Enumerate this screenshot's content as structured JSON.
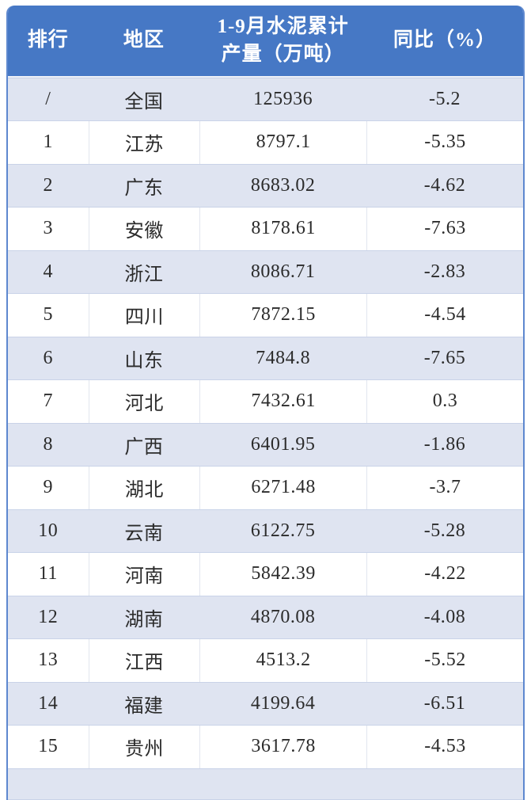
{
  "table": {
    "headers": {
      "rank": "排行",
      "region": "地区",
      "production_line1": "1-9月水泥累计",
      "production_line2": "产量（万吨）",
      "yoy": "同比（%）"
    },
    "colors": {
      "header_bg": "#4678c5",
      "row_alt_bg": "#dfe4f1",
      "side_border": "#5e88cf",
      "text": "#2b2b2b"
    },
    "rows": [
      {
        "rank": "/",
        "region": "全国",
        "production": "125936",
        "yoy": "-5.2"
      },
      {
        "rank": "1",
        "region": "江苏",
        "production": "8797.1",
        "yoy": "-5.35"
      },
      {
        "rank": "2",
        "region": "广东",
        "production": "8683.02",
        "yoy": "-4.62"
      },
      {
        "rank": "3",
        "region": "安徽",
        "production": "8178.61",
        "yoy": "-7.63"
      },
      {
        "rank": "4",
        "region": "浙江",
        "production": "8086.71",
        "yoy": "-2.83"
      },
      {
        "rank": "5",
        "region": "四川",
        "production": "7872.15",
        "yoy": "-4.54"
      },
      {
        "rank": "6",
        "region": "山东",
        "production": "7484.8",
        "yoy": "-7.65"
      },
      {
        "rank": "7",
        "region": "河北",
        "production": "7432.61",
        "yoy": "0.3"
      },
      {
        "rank": "8",
        "region": "广西",
        "production": "6401.95",
        "yoy": "-1.86"
      },
      {
        "rank": "9",
        "region": "湖北",
        "production": "6271.48",
        "yoy": "-3.7"
      },
      {
        "rank": "10",
        "region": "云南",
        "production": "6122.75",
        "yoy": "-5.28"
      },
      {
        "rank": "11",
        "region": "河南",
        "production": "5842.39",
        "yoy": "-4.22"
      },
      {
        "rank": "12",
        "region": "湖南",
        "production": "4870.08",
        "yoy": "-4.08"
      },
      {
        "rank": "13",
        "region": "江西",
        "production": "4513.2",
        "yoy": "-5.52"
      },
      {
        "rank": "14",
        "region": "福建",
        "production": "4199.64",
        "yoy": "-6.51"
      },
      {
        "rank": "15",
        "region": "贵州",
        "production": "3617.78",
        "yoy": "-4.53"
      }
    ]
  },
  "chart_data": {
    "type": "table",
    "title": "1-9月水泥累计产量（万吨）及同比（%）",
    "columns": [
      "排行",
      "地区",
      "1-9月水泥累计产量（万吨）",
      "同比（%）"
    ],
    "rows": [
      [
        "/",
        "全国",
        125936,
        -5.2
      ],
      [
        1,
        "江苏",
        8797.1,
        -5.35
      ],
      [
        2,
        "广东",
        8683.02,
        -4.62
      ],
      [
        3,
        "安徽",
        8178.61,
        -7.63
      ],
      [
        4,
        "浙江",
        8086.71,
        -2.83
      ],
      [
        5,
        "四川",
        7872.15,
        -4.54
      ],
      [
        6,
        "山东",
        7484.8,
        -7.65
      ],
      [
        7,
        "河北",
        7432.61,
        0.3
      ],
      [
        8,
        "广西",
        6401.95,
        -1.86
      ],
      [
        9,
        "湖北",
        6271.48,
        -3.7
      ],
      [
        10,
        "云南",
        6122.75,
        -5.28
      ],
      [
        11,
        "河南",
        5842.39,
        -4.22
      ],
      [
        12,
        "湖南",
        4870.08,
        -4.08
      ],
      [
        13,
        "江西",
        4513.2,
        -5.52
      ],
      [
        14,
        "福建",
        4199.64,
        -6.51
      ],
      [
        15,
        "贵州",
        3617.78,
        -4.53
      ]
    ]
  }
}
